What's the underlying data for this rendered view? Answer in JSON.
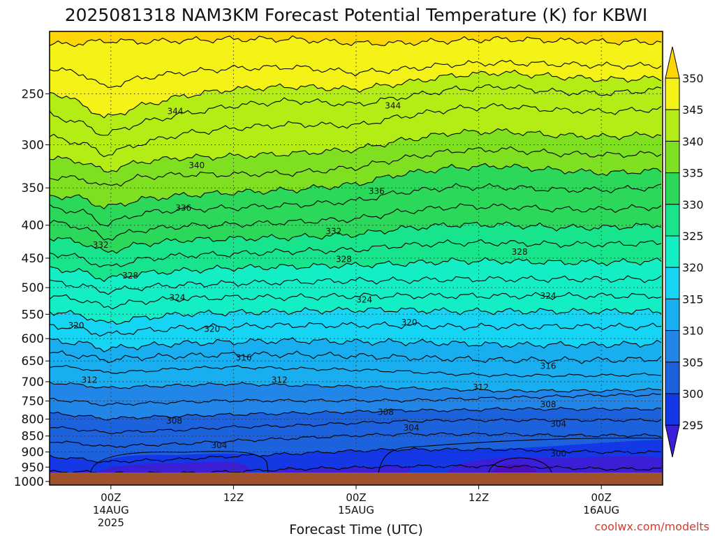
{
  "chart_data": {
    "type": "heatmap",
    "title": "2025081318 NAM3KM Forecast Potential Temperature (K) for KBWI",
    "xlabel": "Forecast Time (UTC)",
    "ylabel": "",
    "credit": "coolwx.com/modelts",
    "y_axis": {
      "ticks": [
        "250",
        "300",
        "350",
        "400",
        "450",
        "500",
        "550",
        "600",
        "650",
        "700",
        "750",
        "800",
        "850",
        "900",
        "950",
        "1000"
      ],
      "range_hPa": [
        200,
        1013
      ],
      "scale": "log-pressure (inverted)"
    },
    "x_axis": {
      "ticks": [
        {
          "label": "00Z",
          "date": "14AUG",
          "year": "2025"
        },
        {
          "label": "12Z",
          "date": "",
          "year": ""
        },
        {
          "label": "00Z",
          "date": "15AUG",
          "year": ""
        },
        {
          "label": "12Z",
          "date": "",
          "year": ""
        },
        {
          "label": "00Z",
          "date": "16AUG",
          "year": ""
        }
      ],
      "range_hours": [
        -6,
        54
      ]
    },
    "grid": "dotted",
    "colorbar": {
      "levels": [
        "295",
        "300",
        "305",
        "310",
        "315",
        "320",
        "325",
        "330",
        "335",
        "340",
        "345",
        "350"
      ],
      "colors": [
        "#3a1fd6",
        "#1438e6",
        "#1c62dc",
        "#2286e8",
        "#18aef0",
        "#16d4f4",
        "#14eec4",
        "#18e48c",
        "#2cd85a",
        "#7ee021",
        "#b4ec16",
        "#f4f216",
        "#fdf200",
        "#fdd60a"
      ],
      "position": "right"
    },
    "contours": [
      {
        "label": "344",
        "x_hours": 6.3,
        "p_hPa": 266
      },
      {
        "label": "344",
        "x_hours": 27.6,
        "p_hPa": 261
      },
      {
        "label": "340",
        "x_hours": 8.4,
        "p_hPa": 323
      },
      {
        "label": "336",
        "x_hours": 7.1,
        "p_hPa": 376
      },
      {
        "label": "336",
        "x_hours": 26.0,
        "p_hPa": 354
      },
      {
        "label": "332",
        "x_hours": -1.0,
        "p_hPa": 429
      },
      {
        "label": "332",
        "x_hours": 21.8,
        "p_hPa": 409
      },
      {
        "label": "328",
        "x_hours": 1.9,
        "p_hPa": 479
      },
      {
        "label": "328",
        "x_hours": 22.8,
        "p_hPa": 452
      },
      {
        "label": "328",
        "x_hours": 40.0,
        "p_hPa": 440
      },
      {
        "label": "324",
        "x_hours": 6.5,
        "p_hPa": 518
      },
      {
        "label": "324",
        "x_hours": 24.8,
        "p_hPa": 522
      },
      {
        "label": "324",
        "x_hours": 42.8,
        "p_hPa": 515
      },
      {
        "label": "320",
        "x_hours": -3.4,
        "p_hPa": 573
      },
      {
        "label": "320",
        "x_hours": 9.9,
        "p_hPa": 580
      },
      {
        "label": "320",
        "x_hours": 29.2,
        "p_hPa": 566
      },
      {
        "label": "316",
        "x_hours": 13.0,
        "p_hPa": 642
      },
      {
        "label": "316",
        "x_hours": 42.8,
        "p_hPa": 662
      },
      {
        "label": "312",
        "x_hours": -2.1,
        "p_hPa": 696
      },
      {
        "label": "312",
        "x_hours": 16.5,
        "p_hPa": 696
      },
      {
        "label": "312",
        "x_hours": 36.2,
        "p_hPa": 714
      },
      {
        "label": "308",
        "x_hours": 6.2,
        "p_hPa": 805
      },
      {
        "label": "308",
        "x_hours": 26.9,
        "p_hPa": 780
      },
      {
        "label": "308",
        "x_hours": 42.8,
        "p_hPa": 759
      },
      {
        "label": "304",
        "x_hours": 10.6,
        "p_hPa": 879
      },
      {
        "label": "304",
        "x_hours": 29.4,
        "p_hPa": 825
      },
      {
        "label": "304",
        "x_hours": 43.8,
        "p_hPa": 814
      },
      {
        "label": "300",
        "x_hours": 43.8,
        "p_hPa": 905
      }
    ],
    "ground_color": "#a0522d"
  }
}
